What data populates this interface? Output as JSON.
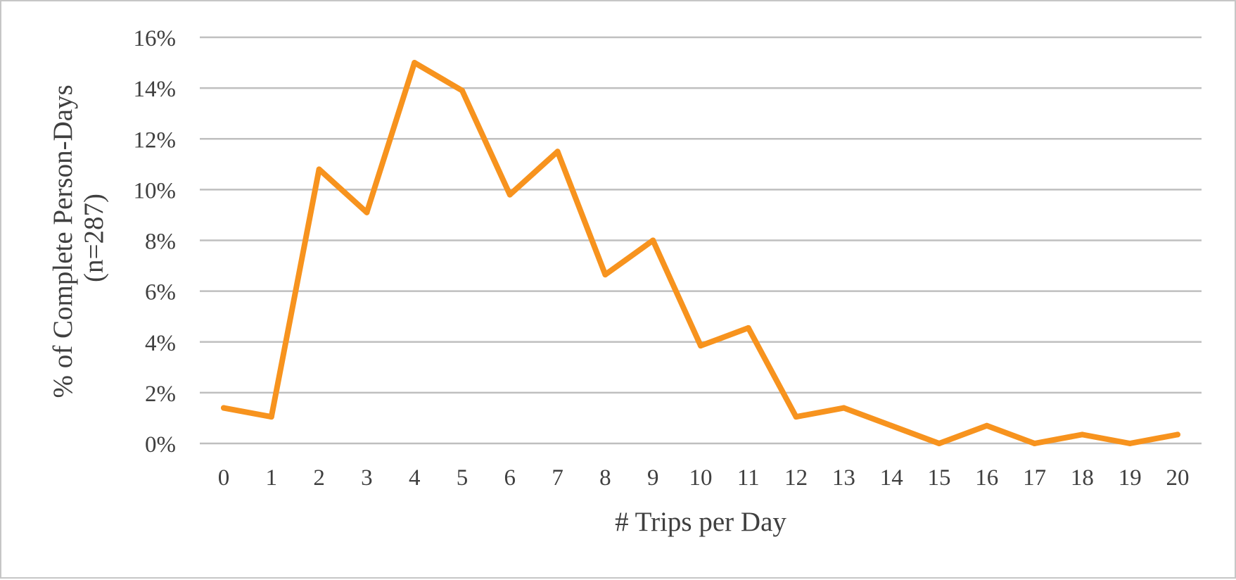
{
  "chart_data": {
    "type": "line",
    "title": "",
    "xlabel": "# Trips per Day",
    "ylabel_lines": [
      "% of Complete Person-Days",
      "(n=287)"
    ],
    "x": [
      0,
      1,
      2,
      3,
      4,
      5,
      6,
      7,
      8,
      9,
      10,
      11,
      12,
      13,
      14,
      15,
      16,
      17,
      18,
      19,
      20
    ],
    "x_tick_labels": [
      "0",
      "1",
      "2",
      "3",
      "4",
      "5",
      "6",
      "7",
      "8",
      "9",
      "10",
      "11",
      "12",
      "13",
      "14",
      "15",
      "16",
      "17",
      "18",
      "19",
      "20"
    ],
    "series": [
      {
        "values": [
          1.4,
          1.05,
          10.8,
          9.1,
          15.0,
          13.9,
          9.8,
          11.5,
          6.65,
          8.0,
          3.85,
          4.55,
          1.05,
          1.4,
          0.7,
          0.0,
          0.7,
          0.0,
          0.35,
          0.0,
          0.35
        ],
        "color": "#f7931e"
      }
    ],
    "ylim": [
      0,
      16
    ],
    "y_ticks": [
      0,
      2,
      4,
      6,
      8,
      10,
      12,
      14,
      16
    ],
    "y_tick_labels": [
      "0%",
      "2%",
      "4%",
      "6%",
      "8%",
      "10%",
      "12%",
      "14%",
      "16%"
    ],
    "grid": true,
    "gridline_color": "#bfbfbf",
    "legend": "none"
  }
}
